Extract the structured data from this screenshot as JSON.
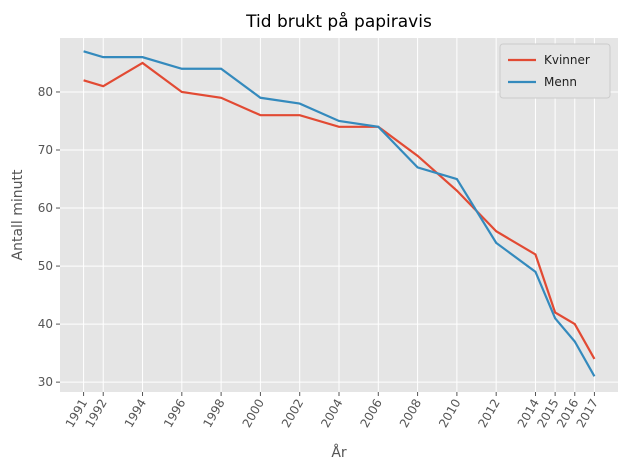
{
  "chart_data": {
    "type": "line",
    "title": "Tid brukt på papiravis",
    "xlabel": "År",
    "ylabel": "Antall minutt",
    "x": [
      1991,
      1992,
      1994,
      1996,
      1998,
      2000,
      2002,
      2004,
      2006,
      2008,
      2010,
      2012,
      2014,
      2015,
      2016,
      2017
    ],
    "series": [
      {
        "name": "Kvinner",
        "color": "#E24A33",
        "values": [
          82,
          81,
          85,
          80,
          79,
          76,
          76,
          74,
          74,
          69,
          63,
          56,
          52,
          42,
          40,
          34
        ]
      },
      {
        "name": "Menn",
        "color": "#348ABD",
        "values": [
          87,
          86,
          86,
          84,
          84,
          79,
          78,
          75,
          74,
          67,
          65,
          54,
          49,
          41,
          37,
          31
        ]
      }
    ],
    "xlim": [
      1989.8,
      2018.2
    ],
    "ylim": [
      28.3,
      89.3
    ],
    "xticks": [
      1991,
      1992,
      1994,
      1996,
      1998,
      2000,
      2002,
      2004,
      2006,
      2008,
      2010,
      2012,
      2014,
      2015,
      2016,
      2017
    ],
    "yticks": [
      30,
      40,
      50,
      60,
      70,
      80
    ],
    "grid": true,
    "legend": "upper right"
  }
}
